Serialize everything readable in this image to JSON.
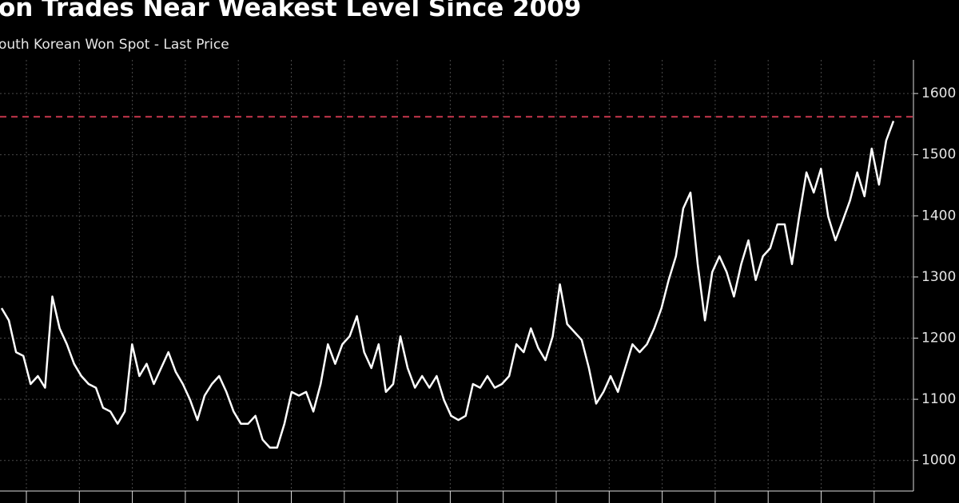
{
  "chart_data": {
    "type": "line",
    "title": "on Trades Near Weakest Level Since 2009",
    "subtitle": "outh Korean Won Spot - Last Price",
    "color": "#ffffff",
    "reference_line": 1562,
    "reference_color": "#c8374d",
    "ylim": [
      950,
      1655
    ],
    "yticks": [
      1000,
      1100,
      1200,
      1300,
      1400,
      1500,
      1600
    ],
    "grid": true,
    "values": [
      1249,
      1229,
      1177,
      1171,
      1125,
      1138,
      1119,
      1268,
      1216,
      1190,
      1158,
      1138,
      1125,
      1119,
      1086,
      1080,
      1060,
      1080,
      1190,
      1138,
      1158,
      1125,
      1151,
      1177,
      1145,
      1125,
      1099,
      1066,
      1106,
      1125,
      1138,
      1112,
      1080,
      1060,
      1060,
      1073,
      1034,
      1021,
      1021,
      1060,
      1112,
      1106,
      1112,
      1080,
      1125,
      1190,
      1158,
      1190,
      1203,
      1236,
      1177,
      1151,
      1190,
      1112,
      1125,
      1203,
      1151,
      1119,
      1138,
      1119,
      1138,
      1099,
      1073,
      1066,
      1073,
      1125,
      1119,
      1138,
      1119,
      1125,
      1138,
      1190,
      1177,
      1216,
      1184,
      1164,
      1203,
      1288,
      1223,
      1210,
      1197,
      1151,
      1093,
      1112,
      1138,
      1112,
      1151,
      1190,
      1177,
      1190,
      1216,
      1249,
      1295,
      1334,
      1412,
      1438,
      1321,
      1229,
      1308,
      1334,
      1308,
      1268,
      1321,
      1360,
      1295,
      1334,
      1347,
      1386,
      1386,
      1321,
      1399,
      1471,
      1438,
      1477,
      1399,
      1360,
      1392,
      1425,
      1471,
      1432,
      1510,
      1451,
      1523,
      1555
    ]
  }
}
